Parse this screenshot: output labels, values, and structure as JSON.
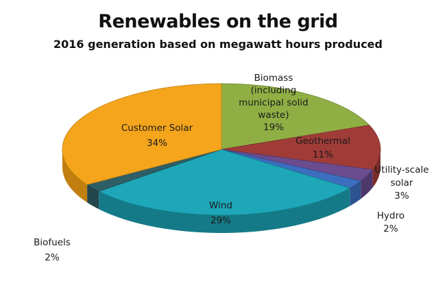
{
  "chart_data": {
    "type": "pie",
    "title": "Renewables on the grid",
    "subtitle": "2016 generation based on megawatt hours produced",
    "slices": [
      {
        "label": "Biomass (including municipal solid waste)",
        "value": 19,
        "value_label": "19%",
        "color": "#8faf44",
        "side_color": "#6b8533"
      },
      {
        "label": "Geothermal",
        "value": 11,
        "value_label": "11%",
        "color": "#a03c38",
        "side_color": "#7a2c29"
      },
      {
        "label": "Utility-scale solar",
        "value": 3,
        "value_label": "3%",
        "color": "#6a4c8f",
        "side_color": "#4e376b"
      },
      {
        "label": "Hydro",
        "value": 2,
        "value_label": "2%",
        "color": "#3c6ec0",
        "side_color": "#2c528f"
      },
      {
        "label": "Wind",
        "value": 29,
        "value_label": "29%",
        "color": "#1da7b9",
        "side_color": "#157a87"
      },
      {
        "label": "Biofuels",
        "value": 2,
        "value_label": "2%",
        "color": "#2f5f66",
        "side_color": "#22464b"
      },
      {
        "label": "Customer Solar",
        "value": 34,
        "value_label": "34%",
        "color": "#f4a51c",
        "side_color": "#c07f0e"
      }
    ],
    "text_labels": [
      {
        "lines": [
          "Biomass",
          "(including",
          "municipal solid",
          "waste)",
          "19%"
        ]
      },
      {
        "lines": [
          "Geothermal",
          "11%"
        ]
      },
      {
        "lines": [
          "Utility-scale",
          "solar",
          "3%"
        ]
      },
      {
        "lines": [
          "Hydro",
          "2%"
        ]
      },
      {
        "lines": [
          "Wind",
          "29%"
        ]
      },
      {
        "lines": [
          "Biofuels",
          "2%"
        ]
      },
      {
        "lines": [
          "Customer Solar",
          "34%"
        ]
      }
    ]
  }
}
